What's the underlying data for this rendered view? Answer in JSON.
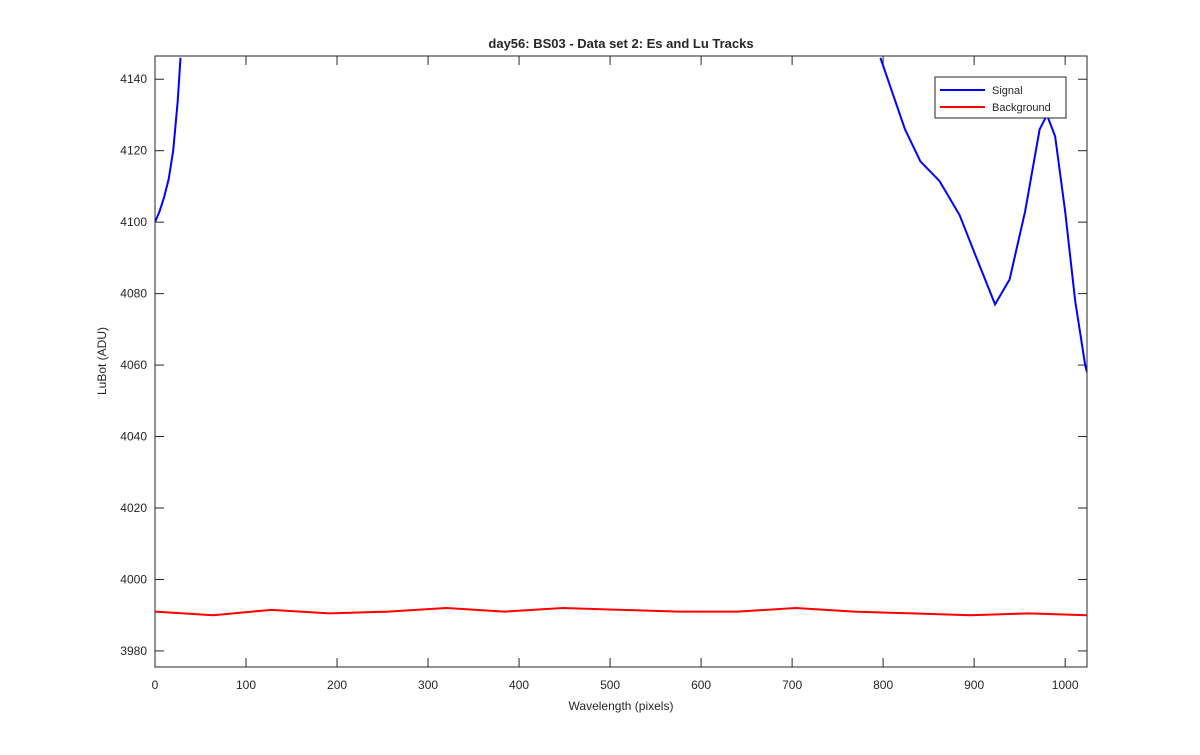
{
  "chart_data": {
    "type": "line",
    "title": "day56: BS03 - Data set 2: Es and Lu Tracks",
    "x_label": "Wavelength (pixels)",
    "y_label": "LuBot (ADU)",
    "xlim": [
      0,
      1024
    ],
    "ylim": [
      3975.5,
      4146.5
    ],
    "xticks": [
      0,
      100,
      200,
      300,
      400,
      500,
      600,
      700,
      800,
      900,
      1000
    ],
    "yticks": [
      3980,
      4000,
      4020,
      4040,
      4060,
      4080,
      4100,
      4120,
      4140
    ],
    "legend": "top-right",
    "series": [
      {
        "name": "Signal",
        "color": "#0000ff",
        "x": [
          0,
          5,
          10,
          15,
          20,
          25,
          28,
          400,
          797,
          824,
          841,
          862,
          884,
          901,
          923,
          939,
          956,
          972,
          980,
          989,
          1000,
          1011,
          1022,
          1024
        ],
        "values": [
          4100,
          4103,
          4107,
          4112,
          4120,
          4134,
          4146,
          null,
          4146,
          4126,
          4117,
          4111.5,
          4102,
          4091,
          4077,
          4084,
          4103,
          4126,
          4130,
          4124,
          4103,
          4078,
          4060,
          4058
        ]
      },
      {
        "name": "Background",
        "color": "#ff0000",
        "x": [
          0,
          64,
          128,
          192,
          256,
          320,
          384,
          448,
          512,
          576,
          640,
          704,
          768,
          832,
          896,
          960,
          1024
        ],
        "values": [
          3991,
          3990,
          3991.5,
          3990.5,
          3991,
          3992,
          3991,
          3992,
          3991.5,
          3991,
          3991,
          3992,
          3991,
          3990.5,
          3990,
          3990.5,
          3990
        ]
      }
    ]
  }
}
